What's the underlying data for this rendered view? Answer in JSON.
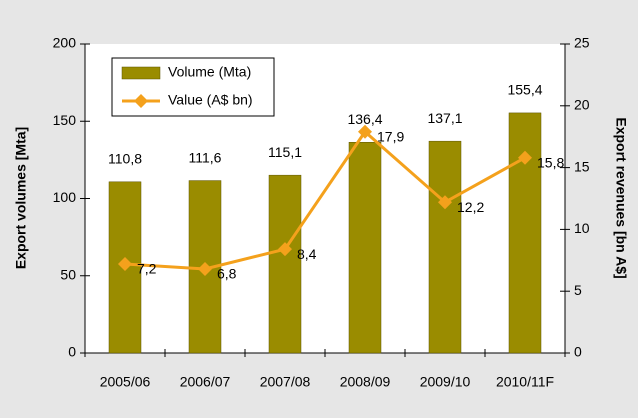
{
  "chart_data": {
    "type": "bar",
    "categories": [
      "2005/06",
      "2006/07",
      "2007/08",
      "2008/09",
      "2009/10",
      "2010/11F"
    ],
    "ylabel": "Export volumes [Mta]",
    "y2label": "Export revenues [bn A$]",
    "ylim": [
      0,
      200
    ],
    "yticks": [
      0,
      50,
      100,
      150,
      200
    ],
    "y2lim": [
      0,
      25
    ],
    "y2ticks": [
      0,
      5,
      10,
      15,
      20,
      25
    ],
    "legend": "upper left",
    "series": [
      {
        "name": "Volume (Mta)",
        "type": "bar",
        "color": "#9a8c00",
        "values": [
          110.8,
          111.6,
          115.1,
          136.4,
          137.1,
          155.4
        ],
        "value_labels": [
          "110,8",
          "111,6",
          "115,1",
          "136,4",
          "137,1",
          "155,4"
        ]
      },
      {
        "name": "Value (A$ bn)",
        "type": "line",
        "axis": "y2",
        "color": "#f4a11c",
        "values": [
          7.2,
          6.8,
          8.4,
          17.9,
          12.2,
          15.8
        ],
        "value_labels": [
          "7,2",
          "6,8",
          "8,4",
          "17,9",
          "12,2",
          "15,8"
        ]
      }
    ]
  }
}
